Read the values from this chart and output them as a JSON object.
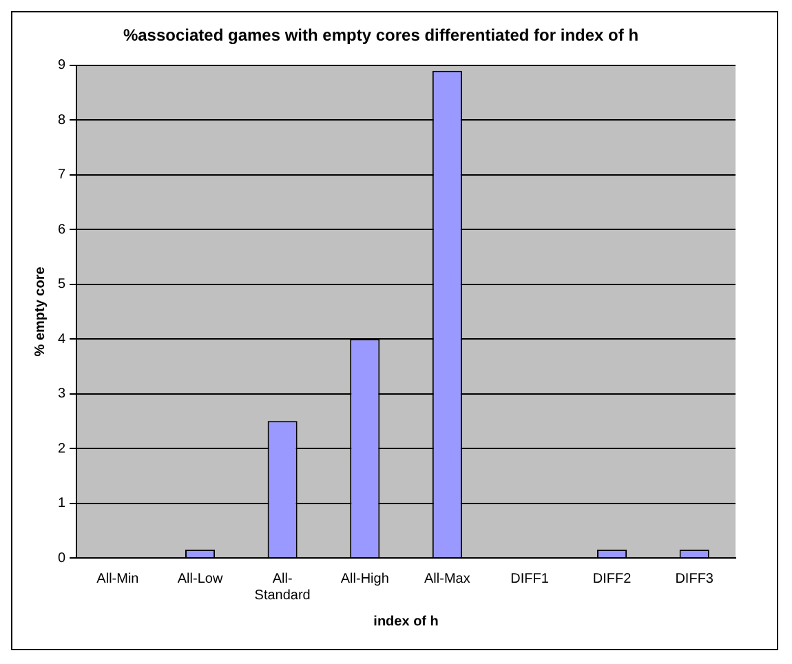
{
  "chart_data": {
    "type": "bar",
    "title": "%associated games with empty cores differentiated for index of h",
    "xlabel": "index of h",
    "ylabel": "% empty core",
    "categories": [
      "All-Min",
      "All-Low",
      "All-Standard",
      "All-High",
      "All-Max",
      "DIFF1",
      "DIFF2",
      "DIFF3"
    ],
    "values": [
      0,
      0.15,
      2.5,
      4.0,
      8.9,
      0,
      0.15,
      0.15
    ],
    "color": "#9999ff",
    "ylim": [
      0,
      9
    ],
    "yticks": [
      0,
      1,
      2,
      3,
      4,
      5,
      6,
      7,
      8,
      9
    ],
    "grid": "y"
  }
}
